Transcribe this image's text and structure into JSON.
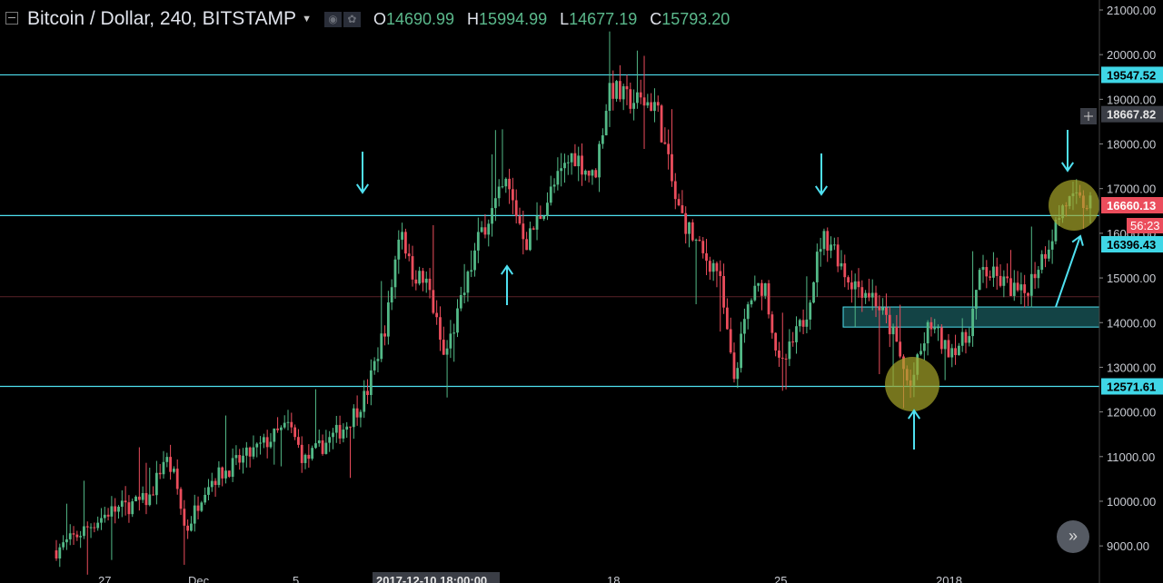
{
  "header": {
    "symbol": "Bitcoin / Dollar, 240, BITSTAMP",
    "o_label": "O",
    "o_value": "14690.99",
    "h_label": "H",
    "h_value": "15994.99",
    "l_label": "L",
    "l_value": "14677.19",
    "c_label": "C",
    "c_value": "15793.20"
  },
  "price_badges": {
    "resistance_top": "19547.52",
    "crosshair": "18667.82",
    "last_price": "16660.13",
    "countdown": "56:23",
    "resistance_mid": "16396.43",
    "support": "12571.61"
  },
  "colors": {
    "background": "#000000",
    "up": "#53b987",
    "down": "#eb4d5c",
    "level_line": "#4fe0f0",
    "zone": "#1f6f73",
    "highlight_circle": "#a7a52a",
    "arrow": "#4fe0f0"
  },
  "chart_data": {
    "type": "candlestick",
    "y_axis_labels": [
      "21000.00",
      "20000.00",
      "19000.00",
      "18000.00",
      "17000.00",
      "16000.00",
      "15000.00",
      "14000.00",
      "13000.00",
      "12000.00",
      "11000.00",
      "10000.00",
      "9000.00"
    ],
    "ylim": [
      8800,
      21300
    ],
    "x_axis_labels": [
      "27",
      "Dec",
      "5",
      "2017-12-10 18:00:00",
      "18",
      "25",
      "2018"
    ],
    "horizontal_levels": [
      19547.52,
      16396.43,
      12571.61
    ],
    "zone": [
      13900,
      14350
    ],
    "anchors": [
      [
        0,
        8900
      ],
      [
        0.05,
        9750
      ],
      [
        0.09,
        10050
      ],
      [
        0.105,
        11000
      ],
      [
        0.115,
        10500
      ],
      [
        0.125,
        9300
      ],
      [
        0.145,
        10400
      ],
      [
        0.19,
        11100
      ],
      [
        0.225,
        11700
      ],
      [
        0.24,
        10900
      ],
      [
        0.28,
        11700
      ],
      [
        0.3,
        12400
      ],
      [
        0.32,
        14100
      ],
      [
        0.333,
        16300
      ],
      [
        0.342,
        15200
      ],
      [
        0.36,
        14800
      ],
      [
        0.375,
        13200
      ],
      [
        0.39,
        14300
      ],
      [
        0.41,
        16000
      ],
      [
        0.435,
        17100
      ],
      [
        0.455,
        15800
      ],
      [
        0.48,
        17000
      ],
      [
        0.5,
        17800
      ],
      [
        0.52,
        17200
      ],
      [
        0.535,
        19300
      ],
      [
        0.55,
        19000
      ],
      [
        0.58,
        18900
      ],
      [
        0.6,
        16600
      ],
      [
        0.625,
        15500
      ],
      [
        0.64,
        15200
      ],
      [
        0.655,
        12700
      ],
      [
        0.67,
        14500
      ],
      [
        0.685,
        14900
      ],
      [
        0.7,
        12900
      ],
      [
        0.725,
        14200
      ],
      [
        0.74,
        15900
      ],
      [
        0.75,
        15800
      ],
      [
        0.765,
        15000
      ],
      [
        0.79,
        14600
      ],
      [
        0.81,
        13700
      ],
      [
        0.825,
        12500
      ],
      [
        0.845,
        14000
      ],
      [
        0.86,
        13400
      ],
      [
        0.88,
        13600
      ],
      [
        0.895,
        15200
      ],
      [
        0.935,
        14600
      ],
      [
        0.96,
        15800
      ],
      [
        0.975,
        16700
      ],
      [
        1.0,
        16660
      ]
    ],
    "candle_count": 300
  }
}
